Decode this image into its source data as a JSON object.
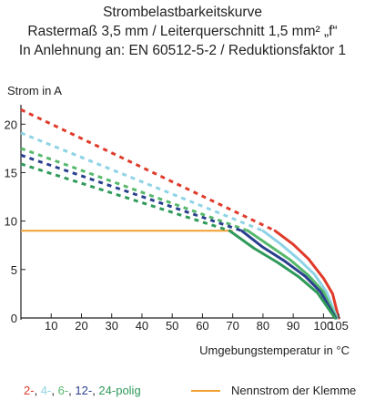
{
  "title": {
    "line1": "Strombelastbarkeitskurve",
    "line2": "Rastermaß 3,5 mm / Leiterquerschnitt 1,5 mm² „f“",
    "line3": "In Anlehnung an: EN 60512-5-2 / Reduktionsfaktor 1"
  },
  "legend": {
    "items": [
      {
        "label": "2-",
        "color": "#e03a2a"
      },
      {
        "label": "4-",
        "color": "#8fd3e6"
      },
      {
        "label": "6-",
        "color": "#56b96c"
      },
      {
        "label": "12-",
        "color": "#2b3f8f"
      },
      {
        "label": "24-polig",
        "color": "#2f9a5a"
      }
    ],
    "sep": ", ",
    "nennstrom": "Nennstrom der Klemme"
  },
  "chart_data": {
    "type": "line",
    "ylabel": "Strom in A",
    "xlabel": "Umgebungstemperatur in °C",
    "xlim": [
      0,
      105
    ],
    "ylim": [
      0,
      22
    ],
    "xticks": [
      10,
      20,
      30,
      40,
      50,
      60,
      70,
      80,
      90,
      100,
      105
    ],
    "yticks": [
      0,
      5,
      10,
      15,
      20
    ],
    "nennstrom": {
      "value": 9,
      "x_end": 70,
      "color": "#f0a030"
    },
    "series": [
      {
        "name": "2-polig",
        "color": "#e03a2a",
        "y0": 21.5,
        "x_knee": 84,
        "y_knee": 9,
        "solid": [
          [
            84,
            9
          ],
          [
            90,
            7.6
          ],
          [
            95,
            6.1
          ],
          [
            100,
            4.1
          ],
          [
            103,
            2.5
          ],
          [
            105,
            0
          ]
        ]
      },
      {
        "name": "4-polig",
        "color": "#8fd3e6",
        "y0": 19.1,
        "x_knee": 80,
        "y_knee": 9,
        "solid": [
          [
            80,
            9
          ],
          [
            86,
            7.6
          ],
          [
            92,
            6.0
          ],
          [
            97,
            4.5
          ],
          [
            101,
            2.7
          ],
          [
            104.5,
            0
          ]
        ]
      },
      {
        "name": "6-polig",
        "color": "#56b96c",
        "y0": 17.5,
        "x_knee": 75,
        "y_knee": 9,
        "solid": [
          [
            75,
            9
          ],
          [
            82,
            7.5
          ],
          [
            89,
            6.0
          ],
          [
            95,
            4.4
          ],
          [
            100,
            2.7
          ],
          [
            104.2,
            0
          ]
        ]
      },
      {
        "name": "12-polig",
        "color": "#2b3f8f",
        "y0": 16.8,
        "x_knee": 73,
        "y_knee": 9,
        "solid": [
          [
            73,
            9
          ],
          [
            80,
            7.3
          ],
          [
            87,
            5.9
          ],
          [
            94,
            4.3
          ],
          [
            99,
            2.7
          ],
          [
            104,
            0
          ]
        ]
      },
      {
        "name": "24-polig",
        "color": "#2f9a5a",
        "y0": 15.9,
        "x_knee": 69,
        "y_knee": 9,
        "solid": [
          [
            69,
            9
          ],
          [
            77,
            7.2
          ],
          [
            85,
            5.7
          ],
          [
            92,
            4.2
          ],
          [
            98,
            2.6
          ],
          [
            103.8,
            0
          ]
        ]
      }
    ]
  }
}
